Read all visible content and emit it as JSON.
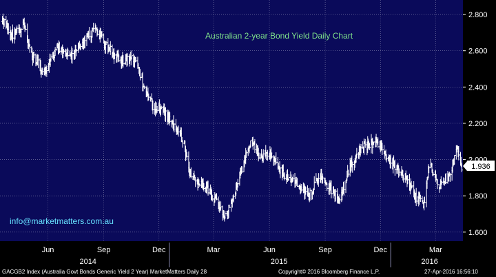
{
  "chart_data": {
    "type": "ohlc",
    "title": "Australian 2-year Bond Yield Daily Chart",
    "annotation": "info@marketmatters.com.au",
    "last_value_label": "1.936",
    "y_ticks": [
      "2.800",
      "2.600",
      "2.400",
      "2.200",
      "2.000",
      "1.800",
      "1.600"
    ],
    "ylim": [
      1.55,
      2.88
    ],
    "x_ticks": [
      "Jun",
      "Sep",
      "Dec",
      "Mar",
      "Jun",
      "Sep",
      "Dec",
      "Mar"
    ],
    "year_labels": [
      "2014",
      "2015",
      "2016"
    ],
    "grid": true,
    "colors": {
      "background": "#0a0a5a",
      "grid": "#8a8ab0",
      "bars": "#ffffff",
      "title": "#7ee08a",
      "annotation": "#66e0ff",
      "axis_panel": "#000000"
    },
    "series_keypoints": [
      {
        "date": "2014-04-01",
        "close": 2.76
      },
      {
        "date": "2014-04-20",
        "close": 2.68
      },
      {
        "date": "2014-05-05",
        "close": 2.74
      },
      {
        "date": "2014-05-20",
        "close": 2.58
      },
      {
        "date": "2014-06-10",
        "close": 2.48
      },
      {
        "date": "2014-07-01",
        "close": 2.62
      },
      {
        "date": "2014-07-20",
        "close": 2.56
      },
      {
        "date": "2014-08-15",
        "close": 2.66
      },
      {
        "date": "2014-09-03",
        "close": 2.72
      },
      {
        "date": "2014-09-20",
        "close": 2.62
      },
      {
        "date": "2014-10-15",
        "close": 2.54
      },
      {
        "date": "2014-11-05",
        "close": 2.56
      },
      {
        "date": "2014-11-20",
        "close": 2.4
      },
      {
        "date": "2014-12-05",
        "close": 2.3
      },
      {
        "date": "2014-12-20",
        "close": 2.28
      },
      {
        "date": "2015-01-10",
        "close": 2.18
      },
      {
        "date": "2015-01-25",
        "close": 2.1
      },
      {
        "date": "2015-02-05",
        "close": 1.9
      },
      {
        "date": "2015-02-20",
        "close": 1.86
      },
      {
        "date": "2015-03-05",
        "close": 1.84
      },
      {
        "date": "2015-03-20",
        "close": 1.76
      },
      {
        "date": "2015-04-02",
        "close": 1.68
      },
      {
        "date": "2015-04-15",
        "close": 1.78
      },
      {
        "date": "2015-05-01",
        "close": 1.95
      },
      {
        "date": "2015-05-15",
        "close": 2.1
      },
      {
        "date": "2015-06-01",
        "close": 2.02
      },
      {
        "date": "2015-06-15",
        "close": 2.05
      },
      {
        "date": "2015-07-01",
        "close": 1.95
      },
      {
        "date": "2015-07-15",
        "close": 1.9
      },
      {
        "date": "2015-08-01",
        "close": 1.85
      },
      {
        "date": "2015-08-20",
        "close": 1.8
      },
      {
        "date": "2015-09-05",
        "close": 1.92
      },
      {
        "date": "2015-09-20",
        "close": 1.85
      },
      {
        "date": "2015-10-10",
        "close": 1.78
      },
      {
        "date": "2015-10-25",
        "close": 1.95
      },
      {
        "date": "2015-11-10",
        "close": 2.05
      },
      {
        "date": "2015-11-25",
        "close": 2.08
      },
      {
        "date": "2015-12-10",
        "close": 2.1
      },
      {
        "date": "2015-12-25",
        "close": 2.02
      },
      {
        "date": "2016-01-10",
        "close": 1.95
      },
      {
        "date": "2016-01-25",
        "close": 1.9
      },
      {
        "date": "2016-02-10",
        "close": 1.8
      },
      {
        "date": "2016-02-25",
        "close": 1.76
      },
      {
        "date": "2016-03-05",
        "close": 1.98
      },
      {
        "date": "2016-03-20",
        "close": 1.85
      },
      {
        "date": "2016-04-05",
        "close": 1.9
      },
      {
        "date": "2016-04-20",
        "close": 2.06
      },
      {
        "date": "2016-04-27",
        "close": 1.936
      }
    ]
  },
  "footer": {
    "left": "GACGB2 Index (Australia Govt Bonds Generic Yield 2 Year) MarketMatters  Daily 28",
    "copyright": "Copyright© 2016 Bloomberg Finance L.P.",
    "timestamp": "27-Apr-2016 16:56:10"
  }
}
